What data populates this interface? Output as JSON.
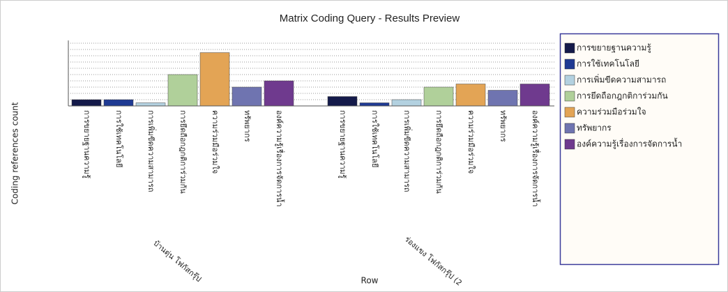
{
  "chart_data": {
    "type": "bar",
    "title": "Matrix Coding Query - Results Preview",
    "y_label": "Coding references count",
    "x_label": "Row",
    "categories": [
      "บ้านตุ่น โฟกัสกรุ๊ป",
      "ร่องแขง โฟกัสกรุ๊ป (2"
    ],
    "series": [
      {
        "name": "การขยายฐานความรู้",
        "color": "#141a4a",
        "values": [
          2,
          3
        ]
      },
      {
        "name": "การใช้เทคโนโลยี",
        "color": "#1f3a93",
        "values": [
          2,
          1
        ]
      },
      {
        "name": "การเพิ่มขีดความสามารถ",
        "color": "#b3d1e0",
        "values": [
          1,
          2
        ]
      },
      {
        "name": "การยึดถือกฎกติการ่วมกัน",
        "color": "#b0d09a",
        "values": [
          10,
          6
        ]
      },
      {
        "name": "ความร่วมมือร่วมใจ",
        "color": "#e3a455",
        "values": [
          17,
          7
        ]
      },
      {
        "name": "ทรัพยากร",
        "color": "#6f74b0",
        "values": [
          6,
          5
        ]
      },
      {
        "name": "องค์ความรู้เรื่องการจัดการน้ำ",
        "color": "#6f3a8e",
        "values": [
          8,
          7
        ]
      }
    ],
    "ylim": [
      0,
      20
    ],
    "yticks": [
      0,
      2,
      4,
      6,
      8,
      10,
      12,
      14,
      16,
      18,
      20
    ],
    "grid": true,
    "legend": "right"
  }
}
